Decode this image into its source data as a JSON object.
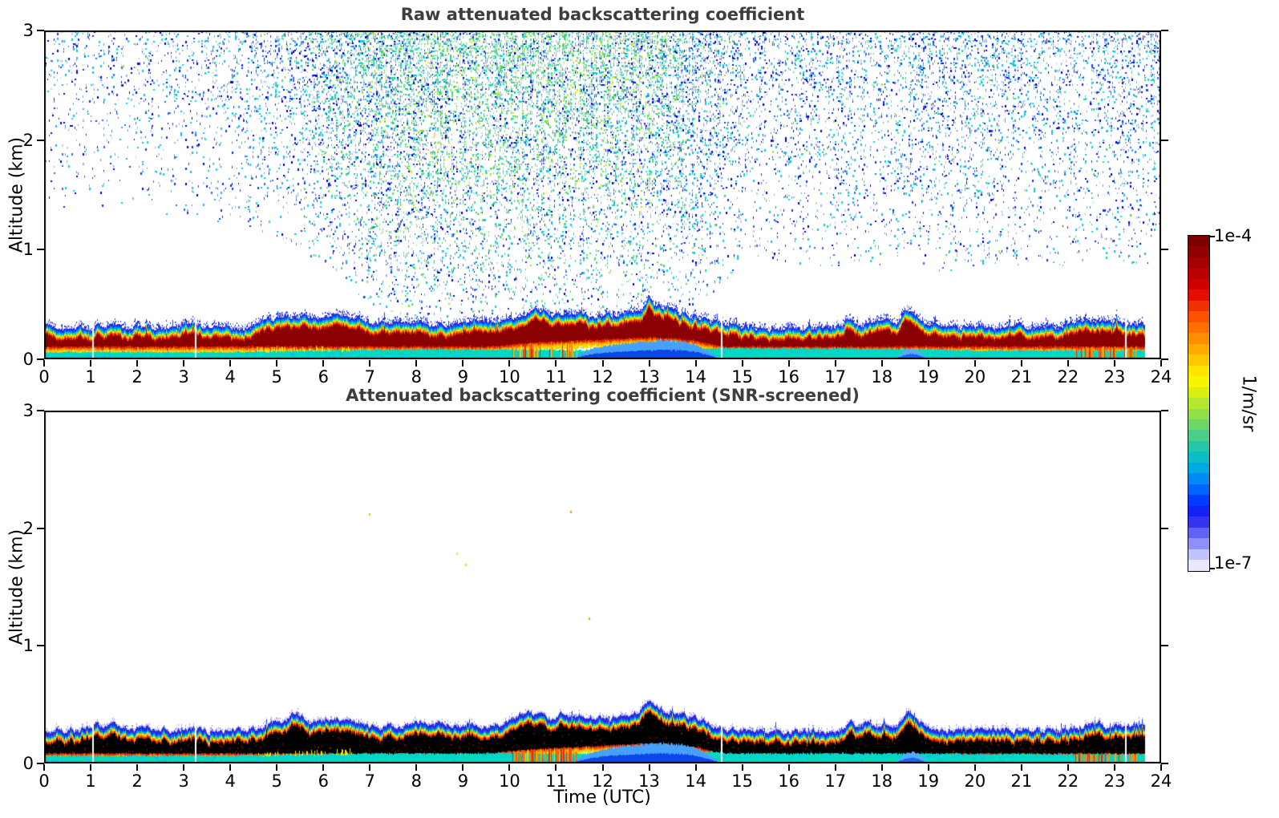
{
  "figure": {
    "background": "#ffffff"
  },
  "chart_data": {
    "type": "heatmap",
    "panels": [
      {
        "title": "Raw attenuated backscattering coefficient",
        "style": "raw",
        "core_color": "#8b0000"
      },
      {
        "title": "Attenuated backscattering coefficient (SNR-screened)",
        "style": "screened",
        "core_color": "#000000"
      }
    ],
    "x_axis": {
      "label": "Time (UTC)",
      "range": [
        0,
        24
      ],
      "ticks": [
        0,
        1,
        2,
        3,
        4,
        5,
        6,
        7,
        8,
        9,
        10,
        11,
        12,
        13,
        14,
        15,
        16,
        17,
        18,
        19,
        20,
        21,
        22,
        23,
        24
      ]
    },
    "y_axis": {
      "label": "Altitude (km)",
      "range": [
        0,
        3
      ],
      "ticks": [
        0,
        1,
        2,
        3
      ]
    },
    "colorbar": {
      "max_label": "1e-4",
      "min_label": "1e-7",
      "unit": "1/m/sr",
      "stops_top_to_bottom": [
        "#7a0000",
        "#8f0000",
        "#a40000",
        "#ba0000",
        "#cf0000",
        "#e30d00",
        "#f13000",
        "#fc5200",
        "#ff7000",
        "#ff8d00",
        "#ffab00",
        "#ffc800",
        "#ffe600",
        "#f7f500",
        "#d9ef10",
        "#b5e72e",
        "#91df4d",
        "#6ed76b",
        "#4ace8a",
        "#26c6a9",
        "#0cbcc8",
        "#00a9e0",
        "#0089f2",
        "#0063fe",
        "#003cff",
        "#1420f8",
        "#3333f0",
        "#6161f4",
        "#8f8ff8",
        "#c2c2fc",
        "#e8e8fe"
      ]
    },
    "data_end_hour": 23.65,
    "gap_hours": [
      1.05,
      3.25,
      14.55,
      23.25
    ],
    "band_top_profile": [
      [
        0,
        0.3
      ],
      [
        0.7,
        0.29
      ],
      [
        1.0,
        0.3
      ],
      [
        1.15,
        0.36
      ],
      [
        1.3,
        0.31
      ],
      [
        1.5,
        0.35
      ],
      [
        1.7,
        0.3
      ],
      [
        2.2,
        0.29
      ],
      [
        2.8,
        0.3
      ],
      [
        3.2,
        0.33
      ],
      [
        3.5,
        0.3
      ],
      [
        4.0,
        0.29
      ],
      [
        4.4,
        0.3
      ],
      [
        4.8,
        0.35
      ],
      [
        5.1,
        0.39
      ],
      [
        5.4,
        0.41
      ],
      [
        5.7,
        0.38
      ],
      [
        6.0,
        0.39
      ],
      [
        6.3,
        0.41
      ],
      [
        6.6,
        0.37
      ],
      [
        7.0,
        0.34
      ],
      [
        7.5,
        0.33
      ],
      [
        8.0,
        0.33
      ],
      [
        8.5,
        0.33
      ],
      [
        9.0,
        0.34
      ],
      [
        9.5,
        0.35
      ],
      [
        9.9,
        0.36
      ],
      [
        10.2,
        0.41
      ],
      [
        10.5,
        0.43
      ],
      [
        10.8,
        0.42
      ],
      [
        11.1,
        0.42
      ],
      [
        11.4,
        0.41
      ],
      [
        11.7,
        0.4
      ],
      [
        12.0,
        0.4
      ],
      [
        12.4,
        0.41
      ],
      [
        12.7,
        0.44
      ],
      [
        12.9,
        0.5
      ],
      [
        13.0,
        0.56
      ],
      [
        13.1,
        0.52
      ],
      [
        13.25,
        0.47
      ],
      [
        13.5,
        0.44
      ],
      [
        13.8,
        0.42
      ],
      [
        14.1,
        0.39
      ],
      [
        14.4,
        0.34
      ],
      [
        14.6,
        0.31
      ],
      [
        15.0,
        0.29
      ],
      [
        15.5,
        0.28
      ],
      [
        16.0,
        0.28
      ],
      [
        16.5,
        0.28
      ],
      [
        17.0,
        0.3
      ],
      [
        17.3,
        0.35
      ],
      [
        17.5,
        0.32
      ],
      [
        17.8,
        0.34
      ],
      [
        18.1,
        0.32
      ],
      [
        18.35,
        0.35
      ],
      [
        18.55,
        0.45
      ],
      [
        18.7,
        0.43
      ],
      [
        18.9,
        0.34
      ],
      [
        19.2,
        0.31
      ],
      [
        19.6,
        0.3
      ],
      [
        20.0,
        0.3
      ],
      [
        20.5,
        0.3
      ],
      [
        21.0,
        0.3
      ],
      [
        21.5,
        0.3
      ],
      [
        22.0,
        0.31
      ],
      [
        22.3,
        0.34
      ],
      [
        22.6,
        0.35
      ],
      [
        23.0,
        0.34
      ],
      [
        23.3,
        0.33
      ],
      [
        23.65,
        0.33
      ]
    ],
    "core_bottom_profile": [
      [
        0,
        0.115
      ],
      [
        9.5,
        0.115
      ],
      [
        10.5,
        0.15
      ],
      [
        11.5,
        0.17
      ],
      [
        12.5,
        0.19
      ],
      [
        13.0,
        0.2
      ],
      [
        13.5,
        0.19
      ],
      [
        14.0,
        0.17
      ],
      [
        14.4,
        0.13
      ],
      [
        14.7,
        0.115
      ],
      [
        24,
        0.115
      ]
    ],
    "screened_core_bottom_offset": -0.03,
    "cyan_top_profile": [
      [
        0,
        0.065
      ],
      [
        4,
        0.065
      ],
      [
        5,
        0.075
      ],
      [
        6.5,
        0.085
      ],
      [
        8,
        0.09
      ],
      [
        10,
        0.09
      ],
      [
        11.4,
        0.08
      ],
      [
        14.5,
        0.1
      ],
      [
        17,
        0.1
      ],
      [
        19,
        0.09
      ],
      [
        20,
        0.08
      ],
      [
        22,
        0.08
      ],
      [
        23.65,
        0.08
      ]
    ],
    "raw_layers_top": [
      [
        0.02,
        "#2a2ae0"
      ],
      [
        0.015,
        "#0077ff"
      ],
      [
        0.01,
        "#00cfe0"
      ],
      [
        0.01,
        "#3fdc55"
      ],
      [
        0.012,
        "#ffe900"
      ],
      [
        0.012,
        "#ff9100"
      ],
      [
        0.014,
        "#ef2a00"
      ]
    ],
    "raw_layers_bottom": [
      [
        0.016,
        "#e03000"
      ],
      [
        0.015,
        "#ff9100"
      ],
      [
        0.022,
        "#ffd800"
      ],
      [
        0.008,
        "#b8e000"
      ]
    ],
    "screened_layers_top": [
      [
        0.012,
        "#c9c9f7"
      ],
      [
        0.03,
        "#2a2ae0"
      ],
      [
        0.013,
        "#0077ff"
      ],
      [
        0.007,
        "#00cfe0"
      ],
      [
        0.007,
        "#3fdc55"
      ],
      [
        0.01,
        "#ffe900"
      ],
      [
        0.011,
        "#ff9100"
      ],
      [
        0.014,
        "#ef2a00"
      ]
    ],
    "screened_layers_bottom": [
      [
        0.014,
        "#e03000"
      ],
      [
        0.013,
        "#ff9100"
      ],
      [
        0.02,
        "#ffd800"
      ],
      [
        0.006,
        "#b8e000"
      ]
    ],
    "bottom_colors": {
      "cyan": "#00d9c6",
      "light": "#5ce4da",
      "speck_green": "#3fd87a",
      "speck_blue": "#2f9df0"
    },
    "blue_bulges": [
      {
        "t0": 11.4,
        "t1": 14.45,
        "light": "#45a0ff",
        "dark": "#0c46e8",
        "profile": [
          [
            11.4,
            0.03
          ],
          [
            11.8,
            0.1
          ],
          [
            12.2,
            0.13
          ],
          [
            12.8,
            0.16
          ],
          [
            13.3,
            0.17
          ],
          [
            13.7,
            0.16
          ],
          [
            14.0,
            0.13
          ],
          [
            14.2,
            0.09
          ],
          [
            14.45,
            0.03
          ]
        ]
      },
      {
        "t0": 18.3,
        "t1": 18.95,
        "light": "#55aaff",
        "dark": "#1e63f0",
        "profile": [
          [
            18.3,
            0.02
          ],
          [
            18.5,
            0.08
          ],
          [
            18.65,
            0.1
          ],
          [
            18.8,
            0.07
          ],
          [
            18.95,
            0.02
          ]
        ]
      }
    ],
    "streaks": [
      {
        "t0": 10.05,
        "t1": 11.45,
        "raw_prob": 0.4,
        "screened_prob": 0.62,
        "zmax": 0.16,
        "colors": [
          "#e82800",
          "#ff8800",
          "#ffcc00",
          "#ff5500"
        ]
      },
      {
        "t0": 22.15,
        "t1": 23.5,
        "raw_prob": 0.5,
        "screened_prob": 0.45,
        "zmax": 0.17,
        "colors": [
          "#e82800",
          "#ff8800",
          "#ffaa00"
        ]
      }
    ],
    "yellow_spike_zone": {
      "t0": 4.55,
      "t1": 6.65,
      "prob": 0.35,
      "color": "#ffe000",
      "height": 0.045
    },
    "noise": {
      "density": 0.62,
      "time_profile": [
        [
          0,
          0.22
        ],
        [
          1,
          0.24
        ],
        [
          2,
          0.26
        ],
        [
          3,
          0.3
        ],
        [
          4,
          0.34
        ],
        [
          4.8,
          0.45
        ],
        [
          5.5,
          0.6
        ],
        [
          6.2,
          0.75
        ],
        [
          7,
          0.92
        ],
        [
          8,
          1.0
        ],
        [
          12.5,
          1.0
        ],
        [
          13.5,
          0.9
        ],
        [
          14.2,
          0.75
        ],
        [
          14.8,
          0.55
        ],
        [
          15.5,
          0.45
        ],
        [
          16.5,
          0.47
        ],
        [
          18,
          0.52
        ],
        [
          20,
          0.5
        ],
        [
          21.5,
          0.46
        ],
        [
          22.5,
          0.44
        ],
        [
          24,
          0.5
        ]
      ],
      "zfloor": [
        [
          0,
          1.05
        ],
        [
          3,
          0.95
        ],
        [
          4.5,
          0.8
        ],
        [
          6,
          0.45
        ],
        [
          7,
          0.1
        ],
        [
          8,
          0.0
        ],
        [
          13.8,
          0.0
        ],
        [
          14.3,
          0.15
        ],
        [
          14.9,
          0.5
        ],
        [
          15.5,
          0.55
        ],
        [
          17,
          0.5
        ],
        [
          19,
          0.45
        ],
        [
          21,
          0.5
        ],
        [
          24,
          0.5
        ]
      ],
      "green_profile": [
        [
          0,
          0.0
        ],
        [
          4,
          0.02
        ],
        [
          5,
          0.1
        ],
        [
          6,
          0.3
        ],
        [
          7,
          0.55
        ],
        [
          8,
          0.7
        ],
        [
          12,
          0.72
        ],
        [
          13,
          0.6
        ],
        [
          14,
          0.3
        ],
        [
          15,
          0.12
        ],
        [
          16,
          0.08
        ],
        [
          18,
          0.1
        ],
        [
          20,
          0.08
        ],
        [
          22,
          0.05
        ],
        [
          24,
          0.05
        ]
      ],
      "palette": {
        "blue": [
          "#0000dd",
          "#1133ff",
          "#3366ff"
        ],
        "cyan": [
          "#00c8f0",
          "#00ded8",
          "#19b9f2"
        ],
        "green": [
          "#30d870",
          "#5fe050",
          "#98e838"
        ],
        "greenmix": "#4ade8f",
        "lavender": [
          "#a9a9f0",
          "#c9c9f8"
        ],
        "yellow": "#eef000"
      }
    },
    "crest": {
      "blue": "#2233dd",
      "lavender": "#9999ee"
    },
    "anomaly_specks": [
      [
        6.97,
        2.13,
        "#b8e000"
      ],
      [
        11.3,
        2.15,
        "#ff9800"
      ],
      [
        8.86,
        1.79,
        "#ffe000"
      ],
      [
        9.05,
        1.7,
        "#ffd000"
      ],
      [
        11.7,
        1.24,
        "#7fd800"
      ]
    ],
    "core_speck_color": "#991100"
  }
}
